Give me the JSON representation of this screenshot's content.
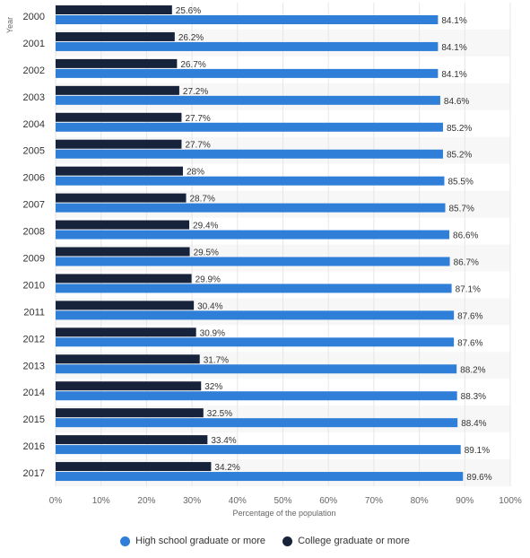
{
  "chart_data": {
    "type": "bar",
    "orientation": "horizontal",
    "xlabel": "Percentage of the population",
    "ylabel": "Year",
    "xlim": [
      0,
      100
    ],
    "x_ticks": [
      "0%",
      "10%",
      "20%",
      "30%",
      "40%",
      "50%",
      "60%",
      "70%",
      "80%",
      "90%",
      "100%"
    ],
    "categories": [
      "2000",
      "2001",
      "2002",
      "2003",
      "2004",
      "2005",
      "2006",
      "2007",
      "2008",
      "2009",
      "2010",
      "2011",
      "2012",
      "2013",
      "2014",
      "2015",
      "2016",
      "2017"
    ],
    "series": [
      {
        "name": "College graduate or more",
        "color": "#17233b",
        "values": [
          25.6,
          26.2,
          26.7,
          27.2,
          27.7,
          27.7,
          28,
          28.7,
          29.4,
          29.5,
          29.9,
          30.4,
          30.9,
          31.7,
          32,
          32.5,
          33.4,
          34.2
        ],
        "labels": [
          "25.6%",
          "26.2%",
          "26.7%",
          "27.2%",
          "27.7%",
          "27.7%",
          "28%",
          "28.7%",
          "29.4%",
          "29.5%",
          "29.9%",
          "30.4%",
          "30.9%",
          "31.7%",
          "32%",
          "32.5%",
          "33.4%",
          "34.2%"
        ]
      },
      {
        "name": "High school graduate or more",
        "color": "#2f7ed8",
        "values": [
          84.1,
          84.1,
          84.1,
          84.6,
          85.2,
          85.2,
          85.5,
          85.7,
          86.6,
          86.7,
          87.1,
          87.6,
          87.6,
          88.2,
          88.3,
          88.4,
          89.1,
          89.6
        ],
        "labels": [
          "84.1%",
          "84.1%",
          "84.1%",
          "84.6%",
          "85.2%",
          "85.2%",
          "85.5%",
          "85.7%",
          "86.6%",
          "86.7%",
          "87.1%",
          "87.6%",
          "87.6%",
          "88.2%",
          "88.3%",
          "88.4%",
          "89.1%",
          "89.6%"
        ]
      }
    ],
    "legend_order": [
      "High school graduate or more",
      "College graduate or more"
    ],
    "legend_position": "bottom-center",
    "grid": true
  }
}
